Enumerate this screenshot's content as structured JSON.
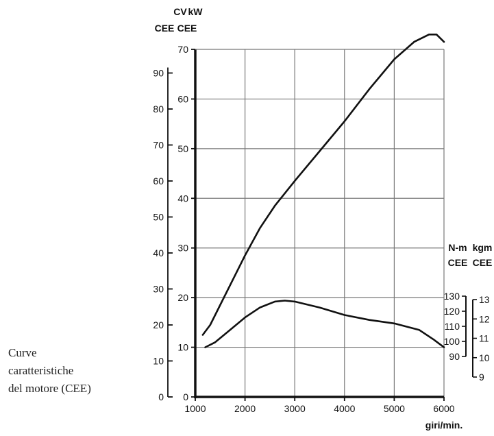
{
  "caption": {
    "line1": "Curve",
    "line2": "caratteristiche",
    "line3": "del motore (CEE)"
  },
  "chart_data": {
    "type": "line",
    "title": "",
    "xlabel": "giri/min.",
    "xlim": [
      1000,
      6000
    ],
    "x_ticks": [
      "1000",
      "2000",
      "3000",
      "4000",
      "5000",
      "6000"
    ],
    "grid": true,
    "axes": {
      "cv": {
        "label_top": "CV",
        "label_bottom": "CEE",
        "ticks": [
          "0",
          "10",
          "20",
          "30",
          "40",
          "50",
          "60",
          "70",
          "80",
          "90"
        ]
      },
      "kw": {
        "label_top": "kW",
        "label_bottom": "CEE",
        "ticks": [
          "0",
          "10",
          "20",
          "30",
          "40",
          "50",
          "60",
          "70"
        ],
        "lim": [
          0,
          70
        ]
      },
      "nm": {
        "label_top": "N-m",
        "label_bottom": "CEE",
        "ticks": [
          "130",
          "120",
          "110",
          "100",
          "90"
        ],
        "lim": [
          90,
          130
        ]
      },
      "kgm": {
        "label_top": "kgm",
        "label_bottom": "CEE",
        "ticks": [
          "13",
          "12",
          "11",
          "10",
          "9"
        ],
        "lim": [
          9,
          13
        ]
      }
    },
    "series": [
      {
        "axis": "kW",
        "x": [
          1150,
          1300,
          1500,
          1800,
          2000,
          2300,
          2600,
          3000,
          3500,
          4000,
          4500,
          5000,
          5400,
          5700,
          5850,
          6000
        ],
        "values": [
          12.5,
          14.5,
          18.5,
          24.5,
          28.5,
          34,
          38.5,
          43.5,
          49.5,
          55.5,
          62,
          68,
          71.5,
          73,
          73,
          71.5
        ]
      },
      {
        "axis": "kW",
        "x": [
          1200,
          1400,
          1700,
          2000,
          2300,
          2600,
          2800,
          3000,
          3500,
          4000,
          4500,
          5000,
          5500,
          5800,
          6000
        ],
        "values": [
          10,
          11,
          13.5,
          16,
          18,
          19.2,
          19.4,
          19.2,
          18,
          16.5,
          15.5,
          14.8,
          13.5,
          11.5,
          10
        ]
      }
    ]
  }
}
